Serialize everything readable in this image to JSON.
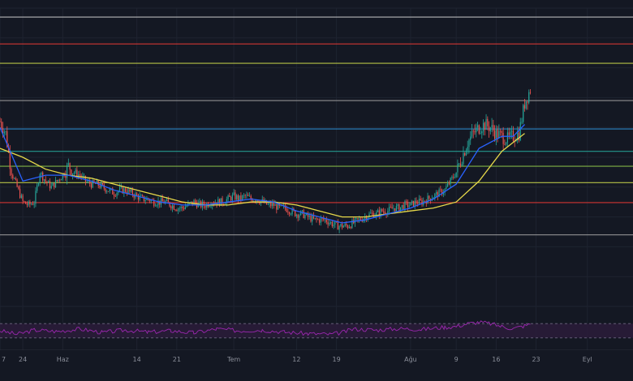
{
  "colors": {
    "background": "#141823",
    "grid": "#1e2330",
    "candle_up": "#26a69a",
    "candle_down": "#ef5350",
    "ma_fast": "#2962ff",
    "ma_slow": "#e6d84a",
    "rsi_line": "#9c27b0",
    "rsi_band": "#2a1c3a",
    "axis_text": "#8a8e99"
  },
  "x_axis": {
    "ticks": [
      {
        "label": "7",
        "day": 0
      },
      {
        "label": "24",
        "day": 4
      },
      {
        "label": "Haz",
        "day": 11
      },
      {
        "label": "14",
        "day": 24
      },
      {
        "label": "21",
        "day": 31
      },
      {
        "label": "Tem",
        "day": 41
      },
      {
        "label": "12",
        "day": 52
      },
      {
        "label": "19",
        "day": 59
      },
      {
        "label": "Ağu",
        "day": 72
      },
      {
        "label": "9",
        "day": 80
      },
      {
        "label": "16",
        "day": 87
      },
      {
        "label": "23",
        "day": 94
      },
      {
        "label": "Eyl",
        "day": 103
      }
    ]
  },
  "chart_data": {
    "type": "candlestick",
    "title": "",
    "xlabel": "",
    "ylabel": "",
    "x_range_days": [
      0,
      111
    ],
    "ylim": [
      0,
      100
    ],
    "grid": true,
    "horizontal_levels": [
      {
        "value": 97,
        "color": "#c8c8c8"
      },
      {
        "value": 88,
        "color": "#e53935"
      },
      {
        "value": 81.5,
        "color": "#c8d44a"
      },
      {
        "value": 69,
        "color": "#9e9e9e"
      },
      {
        "value": 59.5,
        "color": "#2d8fd5"
      },
      {
        "value": 52,
        "color": "#26a69a"
      },
      {
        "value": 47,
        "color": "#8bc34a"
      },
      {
        "value": 41.5,
        "color": "#c8d44a"
      },
      {
        "value": 34.8,
        "color": "#e53935"
      },
      {
        "value": 24,
        "color": "#9e9e9e"
      }
    ],
    "price_path": [
      [
        0,
        62
      ],
      [
        1,
        58
      ],
      [
        2,
        45
      ],
      [
        3,
        40
      ],
      [
        4,
        35
      ],
      [
        5,
        34
      ],
      [
        6,
        35
      ],
      [
        7,
        45
      ],
      [
        8,
        42
      ],
      [
        9,
        40
      ],
      [
        10,
        42
      ],
      [
        11,
        44
      ],
      [
        12,
        47
      ],
      [
        13,
        45
      ],
      [
        14,
        44
      ],
      [
        15,
        42
      ],
      [
        16,
        41
      ],
      [
        17,
        41
      ],
      [
        18,
        40
      ],
      [
        19,
        39
      ],
      [
        20,
        38
      ],
      [
        21,
        39
      ],
      [
        22,
        39
      ],
      [
        23,
        38
      ],
      [
        24,
        37
      ],
      [
        25,
        36
      ],
      [
        26,
        36
      ],
      [
        27,
        35
      ],
      [
        28,
        35
      ],
      [
        29,
        35
      ],
      [
        30,
        34
      ],
      [
        31,
        33
      ],
      [
        32,
        33
      ],
      [
        33,
        34
      ],
      [
        34,
        35
      ],
      [
        35,
        34
      ],
      [
        36,
        34
      ],
      [
        37,
        35
      ],
      [
        38,
        35
      ],
      [
        39,
        35
      ],
      [
        40,
        36
      ],
      [
        41,
        37
      ],
      [
        42,
        36
      ],
      [
        43,
        37
      ],
      [
        44,
        36
      ],
      [
        45,
        36
      ],
      [
        46,
        35
      ],
      [
        47,
        34
      ],
      [
        48,
        34
      ],
      [
        49,
        33
      ],
      [
        50,
        33
      ],
      [
        51,
        32
      ],
      [
        52,
        31
      ],
      [
        53,
        31
      ],
      [
        54,
        30
      ],
      [
        55,
        29
      ],
      [
        56,
        29
      ],
      [
        57,
        29
      ],
      [
        58,
        28
      ],
      [
        59,
        27
      ],
      [
        60,
        27
      ],
      [
        61,
        27
      ],
      [
        62,
        28
      ],
      [
        63,
        29
      ],
      [
        64,
        30
      ],
      [
        65,
        31
      ],
      [
        66,
        31
      ],
      [
        67,
        32
      ],
      [
        68,
        32
      ],
      [
        69,
        33
      ],
      [
        70,
        33
      ],
      [
        71,
        34
      ],
      [
        72,
        34
      ],
      [
        73,
        35
      ],
      [
        74,
        35
      ],
      [
        75,
        36
      ],
      [
        76,
        37
      ],
      [
        77,
        38
      ],
      [
        78,
        39
      ],
      [
        79,
        42
      ],
      [
        80,
        45
      ],
      [
        81,
        50
      ],
      [
        82,
        55
      ],
      [
        83,
        58
      ],
      [
        84,
        60
      ],
      [
        85,
        61
      ],
      [
        86,
        60
      ],
      [
        87,
        58
      ],
      [
        88,
        57
      ],
      [
        89,
        56
      ],
      [
        90,
        57
      ],
      [
        91,
        58
      ],
      [
        92,
        68
      ],
      [
        93,
        73
      ]
    ],
    "ma_fast": [
      [
        0,
        60
      ],
      [
        4,
        42
      ],
      [
        8,
        44
      ],
      [
        12,
        44
      ],
      [
        16,
        42
      ],
      [
        20,
        39
      ],
      [
        24,
        37
      ],
      [
        28,
        35
      ],
      [
        32,
        34
      ],
      [
        36,
        34
      ],
      [
        40,
        35
      ],
      [
        44,
        36
      ],
      [
        48,
        35
      ],
      [
        52,
        32
      ],
      [
        56,
        30
      ],
      [
        60,
        28
      ],
      [
        64,
        29
      ],
      [
        68,
        31
      ],
      [
        72,
        33
      ],
      [
        76,
        36
      ],
      [
        80,
        41
      ],
      [
        84,
        53
      ],
      [
        88,
        57
      ],
      [
        90,
        57
      ],
      [
        92,
        61
      ]
    ],
    "ma_slow": [
      [
        0,
        53
      ],
      [
        4,
        50
      ],
      [
        8,
        46
      ],
      [
        12,
        44
      ],
      [
        16,
        43
      ],
      [
        20,
        41
      ],
      [
        24,
        39
      ],
      [
        28,
        37
      ],
      [
        32,
        35
      ],
      [
        36,
        34
      ],
      [
        40,
        34
      ],
      [
        44,
        35
      ],
      [
        48,
        35
      ],
      [
        52,
        34
      ],
      [
        56,
        32
      ],
      [
        60,
        30
      ],
      [
        64,
        30
      ],
      [
        68,
        31
      ],
      [
        72,
        32
      ],
      [
        76,
        33
      ],
      [
        80,
        35
      ],
      [
        84,
        42
      ],
      [
        88,
        52
      ],
      [
        90,
        55
      ],
      [
        92,
        58
      ]
    ],
    "rsi": {
      "ylim": [
        0,
        100
      ],
      "band": [
        30,
        70
      ],
      "values": [
        [
          0,
          50
        ],
        [
          3,
          40
        ],
        [
          6,
          52
        ],
        [
          10,
          48
        ],
        [
          14,
          55
        ],
        [
          18,
          45
        ],
        [
          22,
          52
        ],
        [
          26,
          46
        ],
        [
          30,
          50
        ],
        [
          34,
          44
        ],
        [
          38,
          55
        ],
        [
          42,
          50
        ],
        [
          46,
          52
        ],
        [
          50,
          46
        ],
        [
          54,
          42
        ],
        [
          58,
          40
        ],
        [
          60,
          45
        ],
        [
          62,
          55
        ],
        [
          66,
          52
        ],
        [
          70,
          56
        ],
        [
          74,
          54
        ],
        [
          78,
          60
        ],
        [
          80,
          62
        ],
        [
          82,
          70
        ],
        [
          84,
          74
        ],
        [
          86,
          70
        ],
        [
          88,
          62
        ],
        [
          90,
          56
        ],
        [
          92,
          64
        ],
        [
          93,
          68
        ]
      ]
    }
  }
}
